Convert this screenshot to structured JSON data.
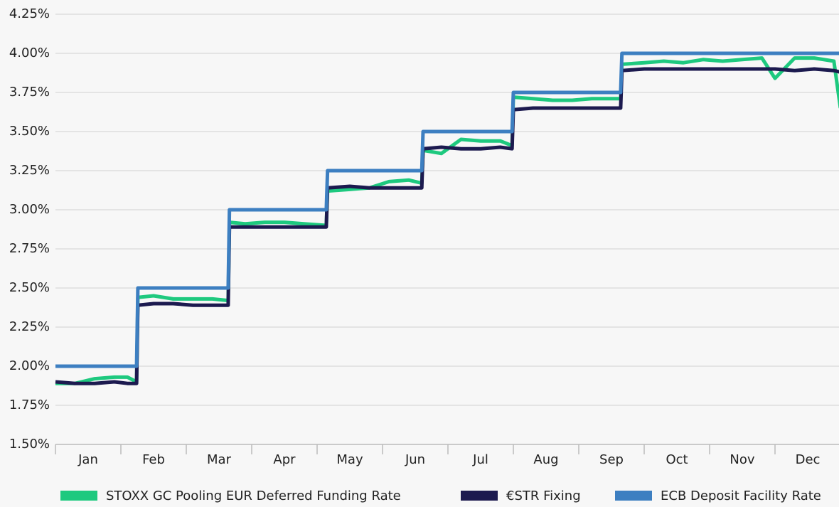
{
  "chart_data": {
    "type": "line",
    "x": [
      0,
      0.3,
      0.6,
      0.9,
      1.1,
      1.24,
      1.26,
      1.5,
      1.8,
      2.1,
      2.4,
      2.64,
      2.66,
      2.9,
      3.2,
      3.5,
      3.8,
      4.14,
      4.16,
      4.5,
      4.8,
      5.1,
      5.4,
      5.6,
      5.62,
      5.9,
      6.2,
      6.5,
      6.8,
      6.98,
      7.0,
      7.3,
      7.6,
      7.9,
      8.2,
      8.5,
      8.64,
      8.66,
      9.0,
      9.3,
      9.6,
      9.9,
      10.2,
      10.5,
      10.8,
      11.0,
      11.3,
      11.6,
      11.9,
      12.0
    ],
    "xlim": [
      0,
      12
    ],
    "xticks": [
      {
        "value": 0.5,
        "label": "Jan"
      },
      {
        "value": 1.5,
        "label": "Feb"
      },
      {
        "value": 2.5,
        "label": "Mar"
      },
      {
        "value": 3.5,
        "label": "Apr"
      },
      {
        "value": 4.5,
        "label": "May"
      },
      {
        "value": 5.5,
        "label": "Jun"
      },
      {
        "value": 6.5,
        "label": "Jul"
      },
      {
        "value": 7.5,
        "label": "Aug"
      },
      {
        "value": 8.5,
        "label": "Sep"
      },
      {
        "value": 9.5,
        "label": "Oct"
      },
      {
        "value": 10.5,
        "label": "Nov"
      },
      {
        "value": 11.5,
        "label": "Dec"
      }
    ],
    "ylim": [
      1.5,
      4.25
    ],
    "yticks": [
      {
        "value": 1.5,
        "label": "1.50%"
      },
      {
        "value": 1.75,
        "label": "1.75%"
      },
      {
        "value": 2.0,
        "label": "2.00%"
      },
      {
        "value": 2.25,
        "label": "2.25%"
      },
      {
        "value": 2.5,
        "label": "2.50%"
      },
      {
        "value": 2.75,
        "label": "2.75%"
      },
      {
        "value": 3.0,
        "label": "3.00%"
      },
      {
        "value": 3.25,
        "label": "3.25%"
      },
      {
        "value": 3.5,
        "label": "3.50%"
      },
      {
        "value": 3.75,
        "label": "3.75%"
      },
      {
        "value": 4.0,
        "label": "4.00%"
      },
      {
        "value": 4.25,
        "label": "4.25%"
      }
    ],
    "grid": true,
    "legend": "bottom",
    "series": [
      {
        "name": "STOXX GC Pooling EUR Deferred Funding Rate",
        "color": "#1ec97f",
        "values": [
          1.89,
          1.89,
          1.92,
          1.93,
          1.93,
          1.9,
          2.44,
          2.45,
          2.43,
          2.43,
          2.43,
          2.42,
          2.92,
          2.91,
          2.92,
          2.92,
          2.91,
          2.9,
          3.12,
          3.13,
          3.14,
          3.18,
          3.19,
          3.17,
          3.38,
          3.36,
          3.45,
          3.44,
          3.44,
          3.41,
          3.72,
          3.71,
          3.7,
          3.7,
          3.71,
          3.71,
          3.71,
          3.93,
          3.94,
          3.95,
          3.94,
          3.96,
          3.95,
          3.96,
          3.97,
          3.84,
          3.97,
          3.97,
          3.95,
          3.65
        ]
      },
      {
        "name": "€STR Fixing",
        "color": "#1c1a4f",
        "values": [
          1.9,
          1.89,
          1.89,
          1.9,
          1.89,
          1.89,
          2.39,
          2.4,
          2.4,
          2.39,
          2.39,
          2.39,
          2.89,
          2.89,
          2.89,
          2.89,
          2.89,
          2.89,
          3.14,
          3.15,
          3.14,
          3.14,
          3.14,
          3.14,
          3.39,
          3.4,
          3.39,
          3.39,
          3.4,
          3.39,
          3.64,
          3.65,
          3.65,
          3.65,
          3.65,
          3.65,
          3.65,
          3.89,
          3.9,
          3.9,
          3.9,
          3.9,
          3.9,
          3.9,
          3.9,
          3.9,
          3.89,
          3.9,
          3.89,
          3.88
        ]
      },
      {
        "name": "ECB Deposit Facility Rate",
        "color": "#3d7fc1",
        "values": [
          2.0,
          2.0,
          2.0,
          2.0,
          2.0,
          2.0,
          2.5,
          2.5,
          2.5,
          2.5,
          2.5,
          2.5,
          3.0,
          3.0,
          3.0,
          3.0,
          3.0,
          3.0,
          3.25,
          3.25,
          3.25,
          3.25,
          3.25,
          3.25,
          3.5,
          3.5,
          3.5,
          3.5,
          3.5,
          3.5,
          3.75,
          3.75,
          3.75,
          3.75,
          3.75,
          3.75,
          3.75,
          4.0,
          4.0,
          4.0,
          4.0,
          4.0,
          4.0,
          4.0,
          4.0,
          4.0,
          4.0,
          4.0,
          4.0,
          4.0
        ]
      }
    ]
  }
}
